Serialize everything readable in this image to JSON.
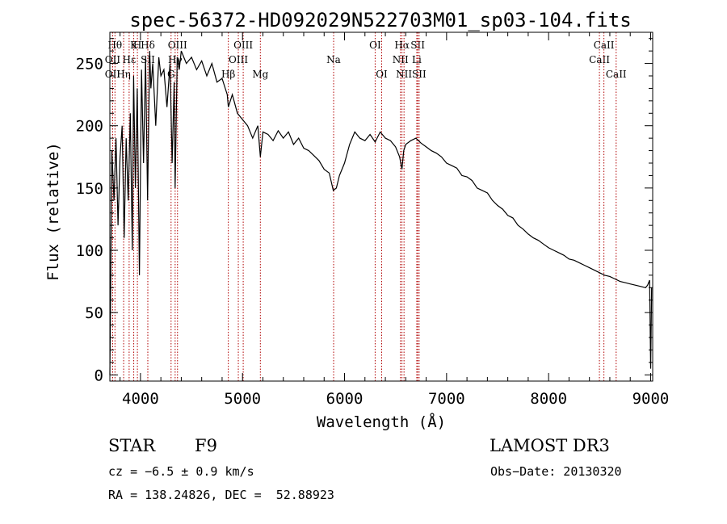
{
  "chart_data": {
    "type": "line",
    "title": "spec-56372-HD092029N522703M01_sp03-104.fits",
    "xlabel": "Wavelength (Å)",
    "ylabel": "Flux (relative)",
    "xlim": [
      3700,
      9020
    ],
    "ylim": [
      -5,
      275
    ],
    "xticks": [
      4000,
      5000,
      6000,
      7000,
      8000,
      9000
    ],
    "yticks": [
      0,
      50,
      100,
      150,
      200,
      250
    ],
    "line_color": "#000000",
    "marker_color": "#b00000",
    "series": [
      {
        "name": "flux",
        "x": [
          3700,
          3720,
          3740,
          3760,
          3780,
          3800,
          3820,
          3840,
          3860,
          3880,
          3900,
          3920,
          3933,
          3950,
          3968,
          3990,
          4010,
          4030,
          4050,
          4070,
          4090,
          4102,
          4120,
          4150,
          4180,
          4200,
          4230,
          4260,
          4290,
          4310,
          4330,
          4340,
          4360,
          4380,
          4400,
          4450,
          4500,
          4550,
          4600,
          4650,
          4700,
          4750,
          4800,
          4850,
          4861,
          4900,
          4950,
          5000,
          5050,
          5100,
          5150,
          5175,
          5200,
          5250,
          5300,
          5350,
          5400,
          5450,
          5500,
          5550,
          5600,
          5650,
          5700,
          5750,
          5800,
          5850,
          5890,
          5920,
          5950,
          6000,
          6050,
          6100,
          6150,
          6200,
          6250,
          6300,
          6350,
          6400,
          6450,
          6500,
          6540,
          6563,
          6580,
          6600,
          6650,
          6700,
          6750,
          6800,
          6850,
          6900,
          6950,
          7000,
          7050,
          7100,
          7150,
          7200,
          7250,
          7300,
          7350,
          7400,
          7450,
          7500,
          7550,
          7600,
          7650,
          7700,
          7750,
          7800,
          7850,
          7900,
          7950,
          8000,
          8050,
          8100,
          8150,
          8200,
          8250,
          8300,
          8350,
          8400,
          8450,
          8500,
          8550,
          8600,
          8650,
          8700,
          8750,
          8800,
          8850,
          8900,
          8950,
          8970,
          8990,
          9000,
          9010
        ],
        "values": [
          0,
          180,
          140,
          190,
          120,
          175,
          200,
          110,
          190,
          140,
          210,
          100,
          240,
          150,
          230,
          80,
          245,
          170,
          255,
          140,
          260,
          230,
          250,
          200,
          255,
          240,
          245,
          215,
          250,
          170,
          235,
          150,
          255,
          245,
          260,
          250,
          255,
          245,
          252,
          240,
          250,
          235,
          238,
          225,
          215,
          225,
          210,
          205,
          200,
          190,
          200,
          175,
          195,
          193,
          188,
          196,
          190,
          195,
          185,
          190,
          182,
          180,
          176,
          172,
          165,
          162,
          148,
          150,
          160,
          170,
          185,
          195,
          190,
          188,
          193,
          187,
          195,
          190,
          188,
          183,
          175,
          165,
          180,
          185,
          188,
          190,
          186,
          183,
          180,
          178,
          175,
          170,
          168,
          166,
          160,
          159,
          156,
          150,
          148,
          146,
          140,
          136,
          133,
          128,
          126,
          120,
          117,
          113,
          110,
          108,
          105,
          102,
          100,
          98,
          96,
          93,
          92,
          90,
          88,
          86,
          84,
          82,
          80,
          79,
          77,
          75,
          74,
          73,
          72,
          71,
          70,
          72,
          76,
          5,
          70
        ]
      }
    ],
    "line_markers": [
      {
        "wavelength": 3750,
        "label": "Hθ",
        "row": 1
      },
      {
        "wavelength": 3727,
        "label": "OII",
        "row": 2
      },
      {
        "wavelength": 3727,
        "label": "OII",
        "row": 3
      },
      {
        "wavelength": 3889,
        "label": "Hε",
        "row": 2
      },
      {
        "wavelength": 3835,
        "label": "Hη",
        "row": 3
      },
      {
        "wavelength": 3934,
        "label": "K",
        "row": 1
      },
      {
        "wavelength": 3970,
        "label": "H",
        "row": 1
      },
      {
        "wavelength": 4072,
        "label": "Hδ",
        "row": 1
      },
      {
        "wavelength": 4072,
        "label": "SII",
        "row": 2
      },
      {
        "wavelength": 4300,
        "label": "G",
        "row": 3
      },
      {
        "wavelength": 4340,
        "label": "Hγ",
        "row": 2
      },
      {
        "wavelength": 4363,
        "label": "OIII",
        "row": 1
      },
      {
        "wavelength": 4861,
        "label": "Hβ",
        "row": 3
      },
      {
        "wavelength": 4959,
        "label": "OIII",
        "row": 2
      },
      {
        "wavelength": 5007,
        "label": "OIII",
        "row": 1
      },
      {
        "wavelength": 5175,
        "label": "Mg",
        "row": 3
      },
      {
        "wavelength": 5893,
        "label": "Na",
        "row": 2
      },
      {
        "wavelength": 6300,
        "label": "OI",
        "row": 1
      },
      {
        "wavelength": 6364,
        "label": "OI",
        "row": 3
      },
      {
        "wavelength": 6548,
        "label": "NII",
        "row": 2
      },
      {
        "wavelength": 6563,
        "label": "Hα",
        "row": 1
      },
      {
        "wavelength": 6583,
        "label": "NII",
        "row": 3
      },
      {
        "wavelength": 6708,
        "label": "Li",
        "row": 2
      },
      {
        "wavelength": 6717,
        "label": "SII",
        "row": 1
      },
      {
        "wavelength": 6731,
        "label": "SII",
        "row": 3
      },
      {
        "wavelength": 8498,
        "label": "CaII",
        "row": 2
      },
      {
        "wavelength": 8542,
        "label": "CaII",
        "row": 1
      },
      {
        "wavelength": 8662,
        "label": "CaII",
        "row": 3
      }
    ]
  },
  "info": {
    "class_label": "STAR",
    "subclass_label": "F9",
    "survey": "LAMOST DR3",
    "redshift": "cz = −6.5 ± 0.9 km/s",
    "obs_date": "Obs−Date: 20130320",
    "coords": "RA = 138.24826, DEC =  52.88923"
  }
}
